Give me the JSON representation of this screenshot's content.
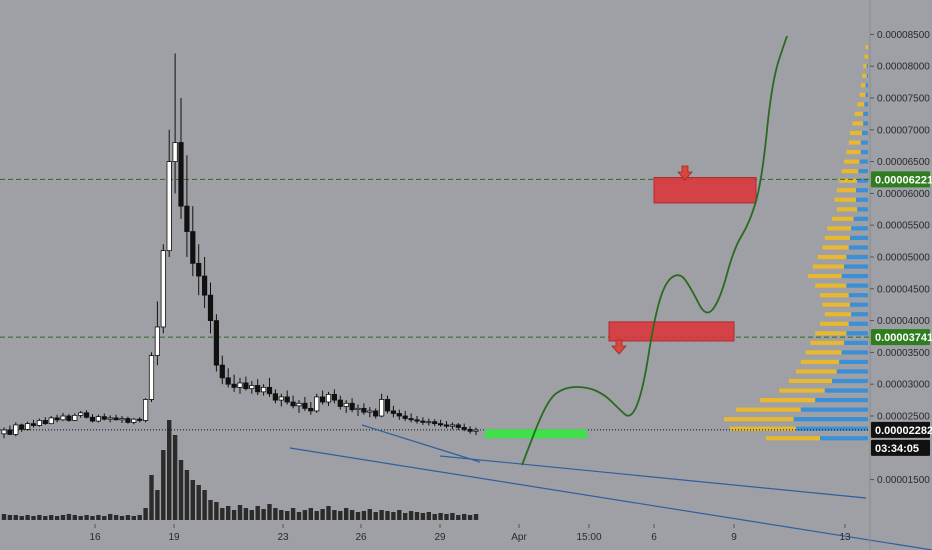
{
  "chart_data": {
    "type": "candlestick",
    "y_ticks": [
      "0.00008500",
      "0.00008000",
      "0.00007500",
      "0.00007000",
      "0.00006500",
      "0.00006000",
      "0.00005500",
      "0.00005000",
      "0.00004500",
      "0.00004000",
      "0.00003500",
      "0.00003000",
      "0.00002500",
      "0.00001500"
    ],
    "x_ticks": [
      "16",
      "19",
      "23",
      "26",
      "29",
      "Apr",
      "15:00",
      "6",
      "9",
      "13"
    ],
    "price_labels": {
      "resistance_high": "0.00006221",
      "resistance_low": "0.00003741",
      "current_price": "0.00002282",
      "countdown": "03:34:05"
    },
    "horizontal_levels": [
      6.221e-05,
      3.741e-05,
      2.282e-05
    ],
    "sell_zones": [
      {
        "from": 5.85e-05,
        "to": 6.25e-05,
        "x_start": "5 Apr",
        "x_end": "8 Apr"
      },
      {
        "from": 3.68e-05,
        "to": 3.98e-05,
        "x_start": "4 Apr",
        "x_end": "8 Apr"
      }
    ],
    "buy_zone": {
      "from": 2.15e-05,
      "to": 2.29e-05
    },
    "candles": [
      [
        2.22e-05,
        2.32e-05,
        2.15e-05,
        2.28e-05
      ],
      [
        2.28e-05,
        2.35e-05,
        2.2e-05,
        2.21e-05
      ],
      [
        2.21e-05,
        2.4e-05,
        2.18e-05,
        2.36e-05
      ],
      [
        2.36e-05,
        2.38e-05,
        2.25e-05,
        2.29e-05
      ],
      [
        2.29e-05,
        2.41e-05,
        2.27e-05,
        2.38e-05
      ],
      [
        2.38e-05,
        2.44e-05,
        2.32e-05,
        2.35e-05
      ],
      [
        2.35e-05,
        2.46e-05,
        2.33e-05,
        2.43e-05
      ],
      [
        2.43e-05,
        2.48e-05,
        2.36e-05,
        2.38e-05
      ],
      [
        2.38e-05,
        2.5e-05,
        2.37e-05,
        2.47e-05
      ],
      [
        2.47e-05,
        2.52e-05,
        2.4e-05,
        2.44e-05
      ],
      [
        2.44e-05,
        2.55e-05,
        2.42e-05,
        2.5e-05
      ],
      [
        2.5e-05,
        2.53e-05,
        2.41e-05,
        2.43e-05
      ],
      [
        2.43e-05,
        2.54e-05,
        2.42e-05,
        2.51e-05
      ],
      [
        2.51e-05,
        2.58e-05,
        2.47e-05,
        2.55e-05
      ],
      [
        2.55e-05,
        2.59e-05,
        2.46e-05,
        2.48e-05
      ],
      [
        2.48e-05,
        2.53e-05,
        2.4e-05,
        2.42e-05
      ],
      [
        2.42e-05,
        2.52e-05,
        2.4e-05,
        2.49e-05
      ],
      [
        2.49e-05,
        2.54e-05,
        2.43e-05,
        2.45e-05
      ],
      [
        2.45e-05,
        2.51e-05,
        2.4e-05,
        2.47e-05
      ],
      [
        2.47e-05,
        2.52e-05,
        2.43e-05,
        2.44e-05
      ],
      [
        2.44e-05,
        2.5e-05,
        2.39e-05,
        2.46e-05
      ],
      [
        2.46e-05,
        2.49e-05,
        2.38e-05,
        2.4e-05
      ],
      [
        2.4e-05,
        2.47e-05,
        2.37e-05,
        2.45e-05
      ],
      [
        2.45e-05,
        2.48e-05,
        2.4e-05,
        2.43e-05
      ],
      [
        2.43e-05,
        2.78e-05,
        2.4e-05,
        2.76e-05
      ],
      [
        2.76e-05,
        3.5e-05,
        2.72e-05,
        3.45e-05
      ],
      [
        3.45e-05,
        4.3e-05,
        3.3e-05,
        3.9e-05
      ],
      [
        3.9e-05,
        5.2e-05,
        3.8e-05,
        5.1e-05
      ],
      [
        5.1e-05,
        7e-05,
        5e-05,
        6.5e-05
      ],
      [
        6.5e-05,
        8.2e-05,
        6e-05,
        6.8e-05
      ],
      [
        6.8e-05,
        7.5e-05,
        5.6e-05,
        5.8e-05
      ],
      [
        5.8e-05,
        6.6e-05,
        5e-05,
        5.4e-05
      ],
      [
        5.4e-05,
        5.8e-05,
        4.7e-05,
        4.9e-05
      ],
      [
        4.9e-05,
        5.2e-05,
        4.4e-05,
        4.7e-05
      ],
      [
        4.7e-05,
        5e-05,
        4.2e-05,
        4.4e-05
      ],
      [
        4.4e-05,
        4.6e-05,
        3.8e-05,
        4e-05
      ],
      [
        4e-05,
        4.1e-05,
        3.2e-05,
        3.3e-05
      ],
      [
        3.3e-05,
        3.45e-05,
        3e-05,
        3.1e-05
      ],
      [
        3.1e-05,
        3.25e-05,
        2.95e-05,
        3e-05
      ],
      [
        3e-05,
        3.15e-05,
        2.88e-05,
        2.95e-05
      ],
      [
        2.95e-05,
        3.1e-05,
        2.85e-05,
        3.02e-05
      ],
      [
        3.02e-05,
        3.12e-05,
        2.9e-05,
        2.93e-05
      ],
      [
        2.93e-05,
        3.05e-05,
        2.85e-05,
        2.98e-05
      ],
      [
        2.98e-05,
        3.08e-05,
        2.83e-05,
        2.88e-05
      ],
      [
        2.88e-05,
        3e-05,
        2.82e-05,
        2.95e-05
      ],
      [
        2.95e-05,
        3.1e-05,
        2.8e-05,
        2.85e-05
      ],
      [
        2.85e-05,
        2.92e-05,
        2.7e-05,
        2.75e-05
      ],
      [
        2.75e-05,
        2.85e-05,
        2.65e-05,
        2.8e-05
      ],
      [
        2.8e-05,
        2.9e-05,
        2.68e-05,
        2.72e-05
      ],
      [
        2.72e-05,
        2.82e-05,
        2.62e-05,
        2.66e-05
      ],
      [
        2.66e-05,
        2.75e-05,
        2.55e-05,
        2.7e-05
      ],
      [
        2.7e-05,
        2.8e-05,
        2.58e-05,
        2.62e-05
      ],
      [
        2.62e-05,
        2.72e-05,
        2.52e-05,
        2.58e-05
      ],
      [
        2.58e-05,
        2.85e-05,
        2.55e-05,
        2.8e-05
      ],
      [
        2.8e-05,
        2.9e-05,
        2.68e-05,
        2.72e-05
      ],
      [
        2.72e-05,
        2.88e-05,
        2.66e-05,
        2.84e-05
      ],
      [
        2.84e-05,
        2.92e-05,
        2.7e-05,
        2.75e-05
      ],
      [
        2.75e-05,
        2.82e-05,
        2.6e-05,
        2.65e-05
      ],
      [
        2.65e-05,
        2.75e-05,
        2.55e-05,
        2.7e-05
      ],
      [
        2.7e-05,
        2.78e-05,
        2.56e-05,
        2.6e-05
      ],
      [
        2.6e-05,
        2.68e-05,
        2.5e-05,
        2.62e-05
      ],
      [
        2.62e-05,
        2.7e-05,
        2.52e-05,
        2.56e-05
      ],
      [
        2.56e-05,
        2.64e-05,
        2.48e-05,
        2.58e-05
      ],
      [
        2.58e-05,
        2.62e-05,
        2.46e-05,
        2.5e-05
      ],
      [
        2.5e-05,
        2.85e-05,
        2.48e-05,
        2.76e-05
      ],
      [
        2.76e-05,
        2.82e-05,
        2.54e-05,
        2.58e-05
      ],
      [
        2.58e-05,
        2.66e-05,
        2.48e-05,
        2.54e-05
      ],
      [
        2.54e-05,
        2.6e-05,
        2.44e-05,
        2.5e-05
      ],
      [
        2.5e-05,
        2.58e-05,
        2.42e-05,
        2.46e-05
      ],
      [
        2.46e-05,
        2.54e-05,
        2.4e-05,
        2.44e-05
      ],
      [
        2.44e-05,
        2.5e-05,
        2.38e-05,
        2.42e-05
      ],
      [
        2.42e-05,
        2.48e-05,
        2.36e-05,
        2.4e-05
      ],
      [
        2.4e-05,
        2.46e-05,
        2.35e-05,
        2.41e-05
      ],
      [
        2.41e-05,
        2.45e-05,
        2.34e-05,
        2.38e-05
      ],
      [
        2.38e-05,
        2.44e-05,
        2.33e-05,
        2.36e-05
      ],
      [
        2.36e-05,
        2.42e-05,
        2.31e-05,
        2.34e-05
      ],
      [
        2.34e-05,
        2.4e-05,
        2.29e-05,
        2.36e-05
      ],
      [
        2.36e-05,
        2.39e-05,
        2.28e-05,
        2.32e-05
      ],
      [
        2.32e-05,
        2.38e-05,
        2.26e-05,
        2.29e-05
      ],
      [
        2.29e-05,
        2.34e-05,
        2.22e-05,
        2.26e-05
      ],
      [
        2.26e-05,
        2.32e-05,
        2.2e-05,
        2.28e-05
      ]
    ],
    "volumes": [
      6,
      5,
      5,
      4,
      5,
      4,
      5,
      4,
      5,
      4,
      5,
      6,
      5,
      4,
      5,
      4,
      5,
      4,
      6,
      5,
      4,
      5,
      4,
      5,
      12,
      45,
      30,
      70,
      100,
      85,
      60,
      50,
      40,
      35,
      30,
      20,
      18,
      12,
      14,
      10,
      15,
      12,
      10,
      14,
      11,
      16,
      12,
      10,
      9,
      12,
      8,
      10,
      12,
      9,
      11,
      14,
      10,
      9,
      12,
      10,
      8,
      9,
      11,
      8,
      10,
      9,
      8,
      10,
      7,
      9,
      8,
      7,
      8,
      6,
      7,
      6,
      7,
      5,
      6,
      5,
      6
    ],
    "volume_profile": [
      [
        8.3e-05,
        2,
        0
      ],
      [
        8.15e-05,
        3,
        0
      ],
      [
        8e-05,
        4,
        1
      ],
      [
        7.85e-05,
        5,
        1
      ],
      [
        7.7e-05,
        6,
        2
      ],
      [
        7.55e-05,
        7,
        2
      ],
      [
        7.4e-05,
        9,
        3
      ],
      [
        7.25e-05,
        11,
        4
      ],
      [
        7.1e-05,
        13,
        4
      ],
      [
        6.95e-05,
        15,
        5
      ],
      [
        6.8e-05,
        16,
        6
      ],
      [
        6.65e-05,
        18,
        6
      ],
      [
        6.5e-05,
        20,
        7
      ],
      [
        6.35e-05,
        22,
        8
      ],
      [
        6.2e-05,
        24,
        9
      ],
      [
        6.05e-05,
        26,
        10
      ],
      [
        5.9e-05,
        28,
        10
      ],
      [
        5.75e-05,
        26,
        9
      ],
      [
        5.6e-05,
        30,
        12
      ],
      [
        5.45e-05,
        34,
        14
      ],
      [
        5.3e-05,
        36,
        15
      ],
      [
        5.15e-05,
        38,
        16
      ],
      [
        5e-05,
        42,
        18
      ],
      [
        4.85e-05,
        46,
        20
      ],
      [
        4.7e-05,
        50,
        22
      ],
      [
        4.55e-05,
        44,
        18
      ],
      [
        4.4e-05,
        40,
        16
      ],
      [
        4.25e-05,
        38,
        15
      ],
      [
        4.1e-05,
        36,
        14
      ],
      [
        3.95e-05,
        40,
        16
      ],
      [
        3.8e-05,
        44,
        18
      ],
      [
        3.65e-05,
        48,
        20
      ],
      [
        3.5e-05,
        52,
        22
      ],
      [
        3.35e-05,
        56,
        24
      ],
      [
        3.2e-05,
        60,
        26
      ],
      [
        3.05e-05,
        66,
        30
      ],
      [
        2.9e-05,
        74,
        36
      ],
      [
        2.75e-05,
        90,
        44
      ],
      [
        2.6e-05,
        110,
        56
      ],
      [
        2.45e-05,
        120,
        62
      ],
      [
        2.3e-05,
        115,
        60
      ],
      [
        2.15e-05,
        85,
        40
      ]
    ],
    "projection_path": [
      [
        "1 Apr",
        2.28e-05
      ],
      [
        "2 Apr",
        3.1e-05
      ],
      [
        "3 Apr",
        3.35e-05
      ],
      [
        "4 Apr",
        3e-05
      ],
      [
        "5 Apr",
        4.3e-05
      ],
      [
        "6 Apr",
        5.05e-05
      ],
      [
        "7 Apr",
        4.4e-05
      ],
      [
        "8 Apr",
        5.6e-05
      ],
      [
        "9 Apr",
        6.4e-05
      ],
      [
        "10 Apr",
        8.4e-05
      ]
    ]
  }
}
